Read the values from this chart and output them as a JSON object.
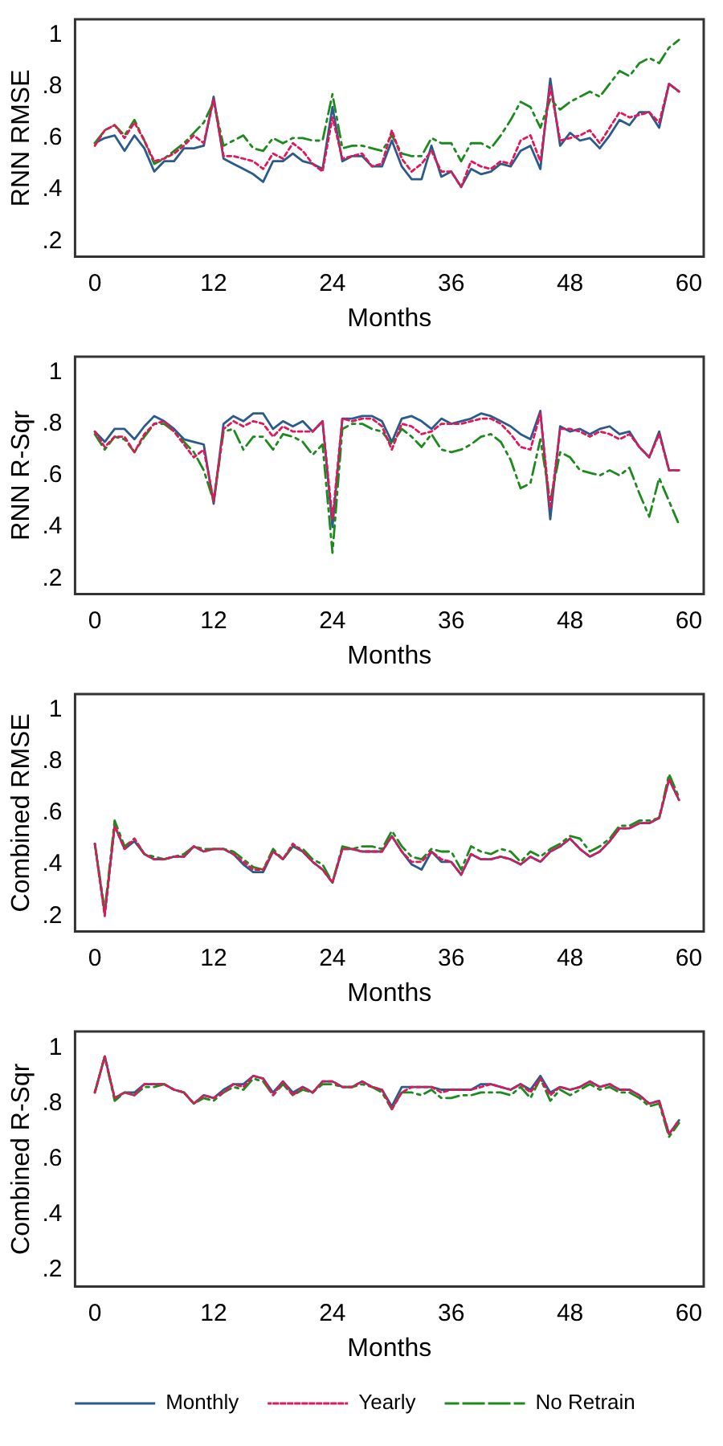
{
  "chart_data": [
    {
      "type": "line",
      "ylabel": "RNN RMSE",
      "xlabel": "Months",
      "x": [
        0,
        1,
        2,
        3,
        4,
        5,
        6,
        7,
        8,
        9,
        10,
        11,
        12,
        13,
        14,
        15,
        16,
        17,
        18,
        19,
        20,
        21,
        22,
        23,
        24,
        25,
        26,
        27,
        28,
        29,
        30,
        31,
        32,
        33,
        34,
        35,
        36,
        37,
        38,
        39,
        40,
        41,
        42,
        43,
        44,
        45,
        46,
        47,
        48,
        49,
        50,
        51,
        52,
        53,
        54,
        55,
        56,
        57,
        58,
        59
      ],
      "xlim": [
        -2,
        61.5
      ],
      "xticks": [
        0,
        12,
        24,
        36,
        48,
        60
      ],
      "ylim": [
        0.14,
        1.06
      ],
      "yticks": [
        {
          "value": 0.2,
          "label": ".2"
        },
        {
          "value": 0.4,
          "label": ".4"
        },
        {
          "value": 0.6,
          "label": ".6"
        },
        {
          "value": 0.8,
          "label": ".8"
        },
        {
          "value": 1,
          "label": "1"
        }
      ],
      "grid": false,
      "legend": false,
      "series": [
        {
          "color": "#2a5b8c",
          "line_style": "solid",
          "values": [
            0.58,
            0.6,
            0.61,
            0.55,
            0.61,
            0.56,
            0.47,
            0.51,
            0.51,
            0.56,
            0.56,
            0.57,
            0.76,
            0.52,
            0.5,
            0.48,
            0.46,
            0.43,
            0.51,
            0.51,
            0.54,
            0.51,
            0.5,
            0.48,
            0.72,
            0.51,
            0.53,
            0.53,
            0.49,
            0.49,
            0.59,
            0.49,
            0.44,
            0.44,
            0.57,
            0.45,
            0.47,
            0.41,
            0.48,
            0.46,
            0.47,
            0.5,
            0.49,
            0.55,
            0.57,
            0.48,
            0.83,
            0.57,
            0.62,
            0.59,
            0.6,
            0.56,
            0.61,
            0.67,
            0.65,
            0.7,
            0.7,
            0.64,
            0.81,
            0.78
          ]
        },
        {
          "color": "#e0185a",
          "line_style": "dotted",
          "values": [
            0.57,
            0.63,
            0.65,
            0.6,
            0.66,
            0.59,
            0.51,
            0.52,
            0.54,
            0.57,
            0.61,
            0.58,
            0.75,
            0.53,
            0.53,
            0.52,
            0.51,
            0.48,
            0.54,
            0.52,
            0.58,
            0.55,
            0.5,
            0.47,
            0.68,
            0.52,
            0.53,
            0.54,
            0.49,
            0.5,
            0.63,
            0.52,
            0.47,
            0.5,
            0.55,
            0.47,
            0.47,
            0.41,
            0.51,
            0.49,
            0.48,
            0.51,
            0.5,
            0.59,
            0.61,
            0.51,
            0.8,
            0.59,
            0.6,
            0.61,
            0.63,
            0.58,
            0.64,
            0.7,
            0.68,
            0.69,
            0.7,
            0.66,
            0.81,
            0.78
          ]
        },
        {
          "color": "#1c8a1c",
          "line_style": "dashed",
          "values": [
            0.58,
            0.63,
            0.65,
            0.61,
            0.67,
            0.59,
            0.5,
            0.52,
            0.55,
            0.58,
            0.62,
            0.66,
            0.74,
            0.57,
            0.59,
            0.61,
            0.56,
            0.55,
            0.6,
            0.58,
            0.6,
            0.6,
            0.59,
            0.59,
            0.77,
            0.56,
            0.57,
            0.57,
            0.56,
            0.55,
            0.61,
            0.54,
            0.53,
            0.53,
            0.6,
            0.58,
            0.58,
            0.51,
            0.58,
            0.58,
            0.56,
            0.61,
            0.67,
            0.74,
            0.72,
            0.64,
            0.75,
            0.71,
            0.74,
            0.76,
            0.78,
            0.76,
            0.81,
            0.86,
            0.84,
            0.89,
            0.91,
            0.89,
            0.95,
            0.98
          ]
        }
      ]
    },
    {
      "type": "line",
      "ylabel": "RNN R-Sqr",
      "xlabel": "Months",
      "x": [
        0,
        1,
        2,
        3,
        4,
        5,
        6,
        7,
        8,
        9,
        10,
        11,
        12,
        13,
        14,
        15,
        16,
        17,
        18,
        19,
        20,
        21,
        22,
        23,
        24,
        25,
        26,
        27,
        28,
        29,
        30,
        31,
        32,
        33,
        34,
        35,
        36,
        37,
        38,
        39,
        40,
        41,
        42,
        43,
        44,
        45,
        46,
        47,
        48,
        49,
        50,
        51,
        52,
        53,
        54,
        55,
        56,
        57,
        58,
        59
      ],
      "xlim": [
        -2,
        61.5
      ],
      "xticks": [
        0,
        12,
        24,
        36,
        48,
        60
      ],
      "ylim": [
        0.14,
        1.06
      ],
      "yticks": [
        {
          "value": 0.2,
          "label": ".2"
        },
        {
          "value": 0.4,
          "label": ".4"
        },
        {
          "value": 0.6,
          "label": ".6"
        },
        {
          "value": 0.8,
          "label": ".8"
        },
        {
          "value": 1,
          "label": "1"
        }
      ],
      "grid": false,
      "legend": false,
      "series": [
        {
          "color": "#2a5b8c",
          "line_style": "solid",
          "values": [
            0.77,
            0.73,
            0.78,
            0.78,
            0.74,
            0.79,
            0.83,
            0.81,
            0.78,
            0.74,
            0.73,
            0.72,
            0.49,
            0.8,
            0.83,
            0.81,
            0.84,
            0.84,
            0.78,
            0.81,
            0.79,
            0.81,
            0.77,
            0.81,
            0.4,
            0.82,
            0.82,
            0.83,
            0.83,
            0.81,
            0.73,
            0.82,
            0.83,
            0.81,
            0.78,
            0.82,
            0.8,
            0.81,
            0.82,
            0.84,
            0.83,
            0.81,
            0.79,
            0.76,
            0.74,
            0.85,
            0.43,
            0.79,
            0.77,
            0.78,
            0.76,
            0.78,
            0.79,
            0.76,
            0.77,
            0.71,
            0.67,
            0.77,
            0.62,
            0.62
          ]
        },
        {
          "color": "#e0185a",
          "line_style": "dotted",
          "values": [
            0.77,
            0.71,
            0.75,
            0.75,
            0.69,
            0.76,
            0.8,
            0.81,
            0.77,
            0.72,
            0.67,
            0.7,
            0.5,
            0.78,
            0.81,
            0.79,
            0.81,
            0.8,
            0.75,
            0.79,
            0.77,
            0.77,
            0.77,
            0.81,
            0.43,
            0.82,
            0.81,
            0.82,
            0.82,
            0.79,
            0.7,
            0.8,
            0.79,
            0.76,
            0.77,
            0.8,
            0.8,
            0.8,
            0.81,
            0.82,
            0.82,
            0.8,
            0.76,
            0.71,
            0.7,
            0.84,
            0.47,
            0.78,
            0.78,
            0.77,
            0.75,
            0.77,
            0.76,
            0.74,
            0.76,
            0.71,
            0.67,
            0.76,
            0.62,
            0.62
          ]
        },
        {
          "color": "#1c8a1c",
          "line_style": "dashed",
          "values": [
            0.76,
            0.7,
            0.75,
            0.74,
            0.69,
            0.75,
            0.8,
            0.8,
            0.77,
            0.73,
            0.69,
            0.62,
            0.5,
            0.77,
            0.78,
            0.7,
            0.75,
            0.75,
            0.7,
            0.76,
            0.75,
            0.73,
            0.68,
            0.72,
            0.3,
            0.78,
            0.8,
            0.8,
            0.78,
            0.77,
            0.72,
            0.78,
            0.75,
            0.71,
            0.76,
            0.7,
            0.69,
            0.7,
            0.72,
            0.75,
            0.76,
            0.73,
            0.66,
            0.55,
            0.57,
            0.74,
            0.5,
            0.69,
            0.67,
            0.62,
            0.61,
            0.6,
            0.62,
            0.6,
            0.63,
            0.53,
            0.44,
            0.59,
            0.5,
            0.41
          ]
        }
      ]
    },
    {
      "type": "line",
      "ylabel": "Combined RMSE",
      "xlabel": "Months",
      "x": [
        0,
        1,
        2,
        3,
        4,
        5,
        6,
        7,
        8,
        9,
        10,
        11,
        12,
        13,
        14,
        15,
        16,
        17,
        18,
        19,
        20,
        21,
        22,
        23,
        24,
        25,
        26,
        27,
        28,
        29,
        30,
        31,
        32,
        33,
        34,
        35,
        36,
        37,
        38,
        39,
        40,
        41,
        42,
        43,
        44,
        45,
        46,
        47,
        48,
        49,
        50,
        51,
        52,
        53,
        54,
        55,
        56,
        57,
        58,
        59
      ],
      "xlim": [
        -2,
        61.5
      ],
      "xticks": [
        0,
        12,
        24,
        36,
        48,
        60
      ],
      "ylim": [
        0.14,
        1.06
      ],
      "yticks": [
        {
          "value": 0.2,
          "label": ".2"
        },
        {
          "value": 0.4,
          "label": ".4"
        },
        {
          "value": 0.6,
          "label": ".6"
        },
        {
          "value": 0.8,
          "label": ".8"
        },
        {
          "value": 1,
          "label": "1"
        }
      ],
      "grid": false,
      "legend": false,
      "series": [
        {
          "color": "#2a5b8c",
          "line_style": "solid",
          "values": [
            0.48,
            0.21,
            0.55,
            0.46,
            0.49,
            0.44,
            0.42,
            0.42,
            0.43,
            0.43,
            0.47,
            0.45,
            0.46,
            0.46,
            0.44,
            0.4,
            0.37,
            0.37,
            0.45,
            0.42,
            0.47,
            0.45,
            0.41,
            0.38,
            0.33,
            0.46,
            0.46,
            0.45,
            0.45,
            0.45,
            0.51,
            0.45,
            0.4,
            0.38,
            0.45,
            0.41,
            0.41,
            0.36,
            0.44,
            0.42,
            0.42,
            0.43,
            0.42,
            0.4,
            0.43,
            0.41,
            0.45,
            0.47,
            0.5,
            0.46,
            0.43,
            0.45,
            0.49,
            0.54,
            0.54,
            0.56,
            0.56,
            0.58,
            0.73,
            0.65
          ]
        },
        {
          "color": "#e0185a",
          "line_style": "dotted",
          "values": [
            0.48,
            0.2,
            0.55,
            0.46,
            0.5,
            0.44,
            0.42,
            0.42,
            0.43,
            0.43,
            0.47,
            0.45,
            0.46,
            0.46,
            0.44,
            0.41,
            0.38,
            0.38,
            0.45,
            0.42,
            0.48,
            0.45,
            0.41,
            0.38,
            0.33,
            0.46,
            0.46,
            0.45,
            0.45,
            0.45,
            0.51,
            0.45,
            0.41,
            0.41,
            0.45,
            0.42,
            0.41,
            0.36,
            0.44,
            0.42,
            0.42,
            0.43,
            0.42,
            0.4,
            0.43,
            0.41,
            0.45,
            0.47,
            0.5,
            0.46,
            0.43,
            0.45,
            0.49,
            0.54,
            0.54,
            0.56,
            0.56,
            0.58,
            0.73,
            0.65
          ]
        },
        {
          "color": "#1c8a1c",
          "line_style": "dashed",
          "values": [
            0.48,
            0.22,
            0.57,
            0.47,
            0.5,
            0.44,
            0.43,
            0.42,
            0.43,
            0.44,
            0.47,
            0.46,
            0.46,
            0.46,
            0.45,
            0.42,
            0.39,
            0.38,
            0.46,
            0.42,
            0.47,
            0.46,
            0.42,
            0.4,
            0.33,
            0.47,
            0.46,
            0.47,
            0.47,
            0.46,
            0.53,
            0.47,
            0.43,
            0.42,
            0.46,
            0.45,
            0.45,
            0.38,
            0.47,
            0.45,
            0.44,
            0.46,
            0.45,
            0.41,
            0.45,
            0.43,
            0.46,
            0.48,
            0.51,
            0.5,
            0.45,
            0.47,
            0.5,
            0.55,
            0.55,
            0.57,
            0.57,
            0.58,
            0.75,
            0.66
          ]
        }
      ]
    },
    {
      "type": "line",
      "ylabel": "Combined R-Sqr",
      "xlabel": "Months",
      "x": [
        0,
        1,
        2,
        3,
        4,
        5,
        6,
        7,
        8,
        9,
        10,
        11,
        12,
        13,
        14,
        15,
        16,
        17,
        18,
        19,
        20,
        21,
        22,
        23,
        24,
        25,
        26,
        27,
        28,
        29,
        30,
        31,
        32,
        33,
        34,
        35,
        36,
        37,
        38,
        39,
        40,
        41,
        42,
        43,
        44,
        45,
        46,
        47,
        48,
        49,
        50,
        51,
        52,
        53,
        54,
        55,
        56,
        57,
        58,
        59
      ],
      "xlim": [
        -2,
        61.5
      ],
      "xticks": [
        0,
        12,
        24,
        36,
        48,
        60
      ],
      "ylim": [
        0.14,
        1.06
      ],
      "yticks": [
        {
          "value": 0.2,
          "label": ".2"
        },
        {
          "value": 0.4,
          "label": ".4"
        },
        {
          "value": 0.6,
          "label": ".6"
        },
        {
          "value": 0.8,
          "label": ".8"
        },
        {
          "value": 1,
          "label": "1"
        }
      ],
      "grid": false,
      "legend": "bottom",
      "series": [
        {
          "name": "Monthly",
          "color": "#2a5b8c",
          "line_style": "solid",
          "values": [
            0.84,
            0.97,
            0.82,
            0.84,
            0.84,
            0.87,
            0.87,
            0.87,
            0.85,
            0.84,
            0.8,
            0.83,
            0.82,
            0.85,
            0.87,
            0.87,
            0.9,
            0.89,
            0.84,
            0.88,
            0.84,
            0.86,
            0.84,
            0.88,
            0.88,
            0.86,
            0.86,
            0.88,
            0.86,
            0.85,
            0.79,
            0.86,
            0.86,
            0.86,
            0.86,
            0.85,
            0.85,
            0.85,
            0.85,
            0.87,
            0.87,
            0.86,
            0.85,
            0.87,
            0.85,
            0.9,
            0.84,
            0.86,
            0.85,
            0.86,
            0.88,
            0.86,
            0.87,
            0.85,
            0.85,
            0.83,
            0.8,
            0.81,
            0.69,
            0.74
          ]
        },
        {
          "name": "Yearly",
          "color": "#e0185a",
          "line_style": "dotted",
          "values": [
            0.84,
            0.97,
            0.82,
            0.84,
            0.83,
            0.87,
            0.87,
            0.87,
            0.85,
            0.84,
            0.8,
            0.83,
            0.82,
            0.84,
            0.87,
            0.86,
            0.9,
            0.89,
            0.83,
            0.88,
            0.83,
            0.86,
            0.84,
            0.88,
            0.88,
            0.86,
            0.86,
            0.88,
            0.86,
            0.85,
            0.78,
            0.84,
            0.86,
            0.86,
            0.86,
            0.84,
            0.85,
            0.85,
            0.85,
            0.86,
            0.87,
            0.86,
            0.85,
            0.87,
            0.84,
            0.89,
            0.83,
            0.86,
            0.85,
            0.86,
            0.88,
            0.86,
            0.87,
            0.85,
            0.85,
            0.83,
            0.8,
            0.81,
            0.69,
            0.74
          ]
        },
        {
          "name": "No Retrain",
          "color": "#1c8a1c",
          "line_style": "dashed",
          "values": [
            0.84,
            0.97,
            0.81,
            0.84,
            0.83,
            0.86,
            0.86,
            0.87,
            0.85,
            0.84,
            0.8,
            0.82,
            0.81,
            0.84,
            0.86,
            0.85,
            0.89,
            0.88,
            0.83,
            0.87,
            0.83,
            0.85,
            0.84,
            0.87,
            0.87,
            0.86,
            0.86,
            0.87,
            0.86,
            0.84,
            0.78,
            0.84,
            0.84,
            0.83,
            0.85,
            0.82,
            0.82,
            0.83,
            0.83,
            0.84,
            0.84,
            0.84,
            0.83,
            0.86,
            0.82,
            0.89,
            0.81,
            0.85,
            0.83,
            0.85,
            0.87,
            0.85,
            0.86,
            0.84,
            0.84,
            0.82,
            0.79,
            0.8,
            0.68,
            0.73
          ]
        }
      ]
    }
  ]
}
